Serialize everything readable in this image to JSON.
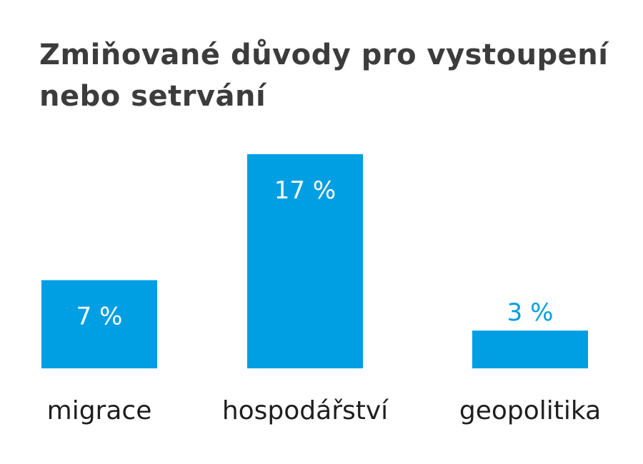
{
  "chart_data": {
    "type": "bar",
    "title_lines": [
      "Zmiňované důvody pro vystoupení",
      "nebo setrvání"
    ],
    "categories": [
      "migrace",
      "hospodářství",
      "geopolitika"
    ],
    "values": [
      7,
      17,
      3
    ],
    "value_labels": [
      "7 %",
      "17 %",
      "3 %"
    ],
    "xlabel": "",
    "ylabel": "",
    "ylim": [
      0,
      17
    ],
    "grid": false,
    "legend": "none"
  },
  "colors": {
    "bar": "#009EE2",
    "title": "#3C3C3C",
    "category_text": "#1E1E1E",
    "label_inside": "#FFFFFF",
    "label_outside": "#009EE2"
  }
}
